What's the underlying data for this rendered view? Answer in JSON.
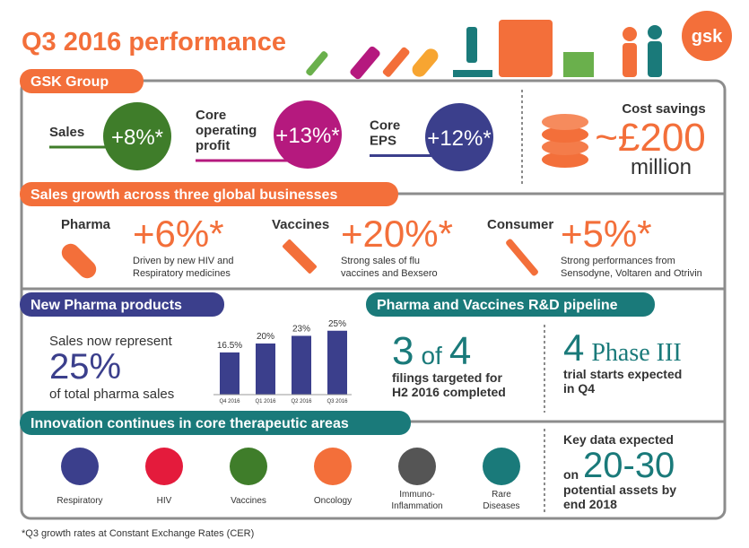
{
  "header": {
    "title": "Q3 2016 performance",
    "logo": "gsk"
  },
  "gsk_group": {
    "title": "GSK Group",
    "metrics": [
      {
        "label_lines": [
          "Sales"
        ],
        "value": "+8%*",
        "color": "#3f7d2a"
      },
      {
        "label_lines": [
          "Core",
          "operating",
          "profit"
        ],
        "value": "+13%*",
        "color": "#b5197e"
      },
      {
        "label_lines": [
          "Core",
          "EPS"
        ],
        "value": "+12%*",
        "color": "#3b3f8c"
      }
    ],
    "cost_savings": {
      "title": "Cost savings",
      "value": "~£200",
      "unit": "million"
    }
  },
  "sales_growth": {
    "title": "Sales growth across three global businesses",
    "businesses": [
      {
        "name": "Pharma",
        "value": "+6%*",
        "note_lines": [
          "Driven by new HIV and",
          "Respiratory medicines"
        ]
      },
      {
        "name": "Vaccines",
        "value": "+20%*",
        "note_lines": [
          "Strong sales of flu",
          "vaccines and Bexsero"
        ]
      },
      {
        "name": "Consumer",
        "value": "+5%*",
        "note_lines": [
          "Strong performances from",
          "Sensodyne, Voltaren and Otrivin"
        ]
      }
    ]
  },
  "new_pharma": {
    "title": "New Pharma products",
    "text_before": "Sales now represent",
    "value": "25%",
    "text_after": "of total pharma sales",
    "chart": {
      "type": "bar",
      "categories": [
        "Q4 2016",
        "Q1 2016",
        "Q2 2016",
        "Q3 2016"
      ],
      "values": [
        16.5,
        20,
        23,
        25
      ],
      "value_labels": [
        "16.5%",
        "20%",
        "23%",
        "25%"
      ],
      "color": "#3b3f8c"
    }
  },
  "pipeline": {
    "title": "Pharma and Vaccines R&D pipeline",
    "left": {
      "num": "3",
      "of": "of",
      "den": "4",
      "text_lines": [
        "filings targeted for",
        "H2 2016 completed"
      ]
    },
    "right": {
      "num": "4",
      "label": "Phase III",
      "text_lines": [
        "trial starts expected",
        "in Q4"
      ]
    }
  },
  "innovation": {
    "title": "Innovation continues in core therapeutic areas",
    "areas": [
      {
        "label_lines": [
          "Respiratory"
        ],
        "color": "#3b3f8c"
      },
      {
        "label_lines": [
          "HIV"
        ],
        "color": "#e41b3c"
      },
      {
        "label_lines": [
          "Vaccines"
        ],
        "color": "#3f7d2a"
      },
      {
        "label_lines": [
          "Oncology"
        ],
        "color": "#f36f3a"
      },
      {
        "label_lines": [
          "Immuno-",
          "Inflammation"
        ],
        "color": "#555555"
      },
      {
        "label_lines": [
          "Rare",
          "Diseases"
        ],
        "color": "#1a7a7a"
      }
    ],
    "key_data": {
      "heading": "Key data expected",
      "on": "on",
      "value": "20-30",
      "text_lines": [
        "potential assets by",
        "end 2018"
      ]
    }
  },
  "footnote": "*Q3 growth rates at Constant Exchange Rates (CER)"
}
